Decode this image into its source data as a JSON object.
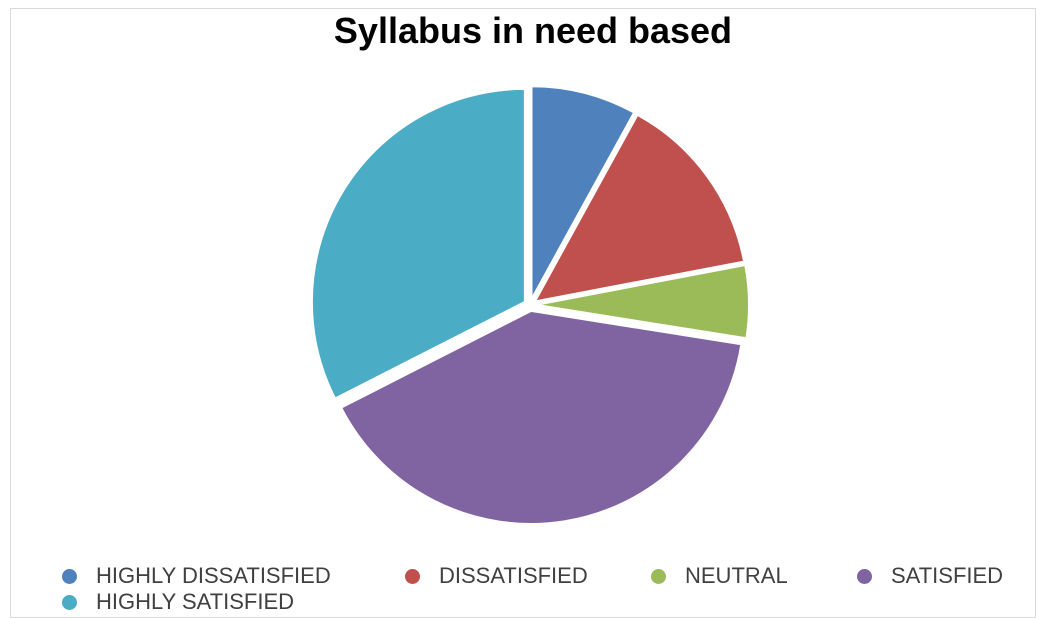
{
  "chart_data": {
    "type": "pie",
    "title": "Syllabus in need based",
    "categories": [
      "HIGHLY DISSATISFIED",
      "DISSATISFIED",
      "NEUTRAL",
      "SATISFIED",
      "HIGHLY SATISFIED"
    ],
    "values": [
      8,
      14,
      5.5,
      40,
      32.5
    ],
    "colors": [
      "#4F81BD",
      "#C0504D",
      "#9BBB59",
      "#8064A2",
      "#4BACC6"
    ],
    "legend_position": "bottom",
    "start_angle": "12 o'clock, clockwise",
    "slice_border_color": "#ffffff"
  }
}
